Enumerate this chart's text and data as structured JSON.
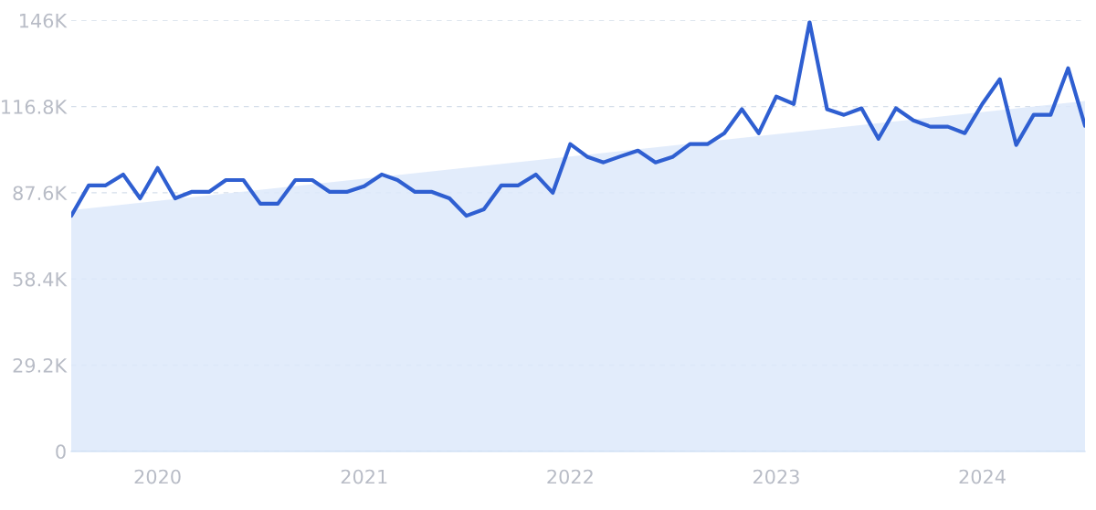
{
  "chart_data": {
    "type": "line",
    "x": [
      "2019-08",
      "2019-09",
      "2019-10",
      "2019-11",
      "2019-12",
      "2020-01",
      "2020-02",
      "2020-03",
      "2020-04",
      "2020-05",
      "2020-06",
      "2020-07",
      "2020-08",
      "2020-09",
      "2020-10",
      "2020-11",
      "2020-12",
      "2021-01",
      "2021-02",
      "2021-03",
      "2021-04",
      "2021-05",
      "2021-06",
      "2021-07",
      "2021-08",
      "2021-09",
      "2021-10",
      "2021-11",
      "2021-12",
      "2022-01",
      "2022-02",
      "2022-03",
      "2022-04",
      "2022-05",
      "2022-06",
      "2022-07",
      "2022-08",
      "2022-09",
      "2022-10",
      "2022-11",
      "2022-12",
      "2023-01",
      "2023-02",
      "2023-03",
      "2023-04",
      "2023-05",
      "2023-06",
      "2023-07",
      "2023-08",
      "2023-09",
      "2023-10",
      "2023-11",
      "2023-12",
      "2024-01",
      "2024-02",
      "2024-03",
      "2024-04",
      "2024-05",
      "2024-06",
      "2024-07"
    ],
    "series": [
      {
        "type": "area",
        "color": "#dde9fa",
        "x": [
          "2019-08",
          "2024-07"
        ],
        "values": [
          81700,
          118700
        ]
      },
      {
        "color": "#2f5fd1",
        "values": [
          79800,
          90100,
          90100,
          93800,
          85700,
          96000,
          85700,
          87900,
          87900,
          91900,
          91900,
          83900,
          83900,
          91900,
          91900,
          87900,
          87900,
          89800,
          93800,
          91900,
          87900,
          87900,
          85700,
          79800,
          82000,
          90100,
          90100,
          93800,
          87600,
          104100,
          99700,
          97900,
          100000,
          101900,
          97900,
          99700,
          104100,
          104100,
          107800,
          115900,
          107800,
          120200,
          117700,
          145400,
          115900,
          114000,
          116200,
          105900,
          116200,
          112100,
          110000,
          110000,
          107800,
          117700,
          126100,
          103800,
          114000,
          114000,
          129800,
          110300
        ]
      }
    ],
    "xlim": [
      "2019-08",
      "2024-07"
    ],
    "xticks": [
      {
        "value": "2020-01",
        "label": "2020"
      },
      {
        "value": "2021-01",
        "label": "2021"
      },
      {
        "value": "2022-01",
        "label": "2022"
      },
      {
        "value": "2023-01",
        "label": "2023"
      },
      {
        "value": "2024-01",
        "label": "2024"
      }
    ],
    "ylim": [
      0,
      146000
    ],
    "yticks": [
      0,
      {
        "value": 29200,
        "label": "29.2K"
      },
      {
        "value": 58400,
        "label": "58.4K"
      },
      {
        "value": 87600,
        "label": "87.6K"
      },
      {
        "value": 116800,
        "label": "116.8K"
      },
      {
        "value": 146000,
        "label": "146K"
      }
    ],
    "grid": "y",
    "line_style": "solid",
    "marker": "none"
  }
}
